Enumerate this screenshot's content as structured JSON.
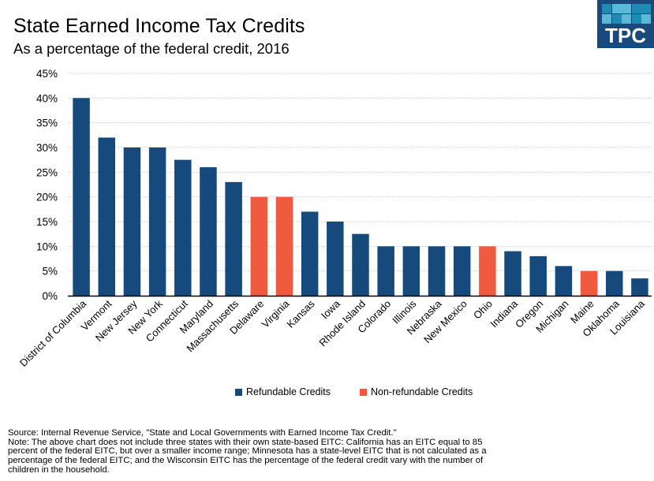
{
  "header": {
    "title": "State Earned Income Tax Credits",
    "subtitle": "As a percentage of the federal credit, 2016"
  },
  "logo": {
    "text": "TPC",
    "tile_colors": [
      "#1d8cb5",
      "#5ab8d8",
      "#5ab8d8",
      "#1d8cb5",
      "#1d8cb5",
      "#5ab8d8",
      "#1d8cb5",
      "#5ab8d8",
      "#1d8cb5",
      "#5ab8d8"
    ]
  },
  "colors": {
    "refundable": "#174a7c",
    "non_refundable": "#f05a3f",
    "grid": "#d9d9d9",
    "axis": "#000000"
  },
  "chart_data": {
    "type": "bar",
    "title": "State Earned Income Tax Credits",
    "subtitle": "As a percentage of the federal credit, 2016",
    "xlabel": "",
    "ylabel": "",
    "ylim": [
      0,
      45
    ],
    "yticks": [
      0,
      5,
      10,
      15,
      20,
      25,
      30,
      35,
      40,
      45
    ],
    "ytick_labels": [
      "0%",
      "5%",
      "10%",
      "15%",
      "20%",
      "25%",
      "30%",
      "35%",
      "40%",
      "45%"
    ],
    "grid": true,
    "legend_position": "bottom-center",
    "categories": [
      "District of Columbia",
      "Vermont",
      "New Jersey",
      "New York",
      "Connecticut",
      "Maryland",
      "Massachusetts",
      "Delaware",
      "Virginia",
      "Kansas",
      "Iowa",
      "Rhode Island",
      "Colorado",
      "Illinois",
      "Nebraska",
      "New Mexico",
      "Ohio",
      "Indiana",
      "Oregon",
      "Michigan",
      "Maine",
      "Oklahoma",
      "Louisiana"
    ],
    "values": [
      40,
      32,
      30,
      30,
      27.5,
      26,
      23,
      20,
      20,
      17,
      15,
      12.5,
      10,
      10,
      10,
      10,
      10,
      9,
      8,
      6,
      5,
      5,
      3.5
    ],
    "credit_type": [
      "refundable",
      "refundable",
      "refundable",
      "refundable",
      "refundable",
      "refundable",
      "refundable",
      "non_refundable",
      "non_refundable",
      "refundable",
      "refundable",
      "refundable",
      "refundable",
      "refundable",
      "refundable",
      "refundable",
      "non_refundable",
      "refundable",
      "refundable",
      "refundable",
      "non_refundable",
      "refundable",
      "refundable"
    ],
    "legend": [
      {
        "key": "refundable",
        "label": "Refundable Credits"
      },
      {
        "key": "non_refundable",
        "label": "Non-refundable Credits"
      }
    ]
  },
  "notes": {
    "lines": [
      "Source: Internal Revenue Service, \"State and Local Governments with Earned Income Tax Credit.\"",
      "Note: The above chart does not include three states with their own state-based EITC: California has an EITC equal to 85",
      "percent of the federal EITC, but over a smaller income range; Minnesota has a state-level EITC that is not calculated as a",
      "percentage of the federal EITC; and the Wisconsin EITC has the percentage of the federal credit vary with the number of",
      "children in the household."
    ]
  }
}
